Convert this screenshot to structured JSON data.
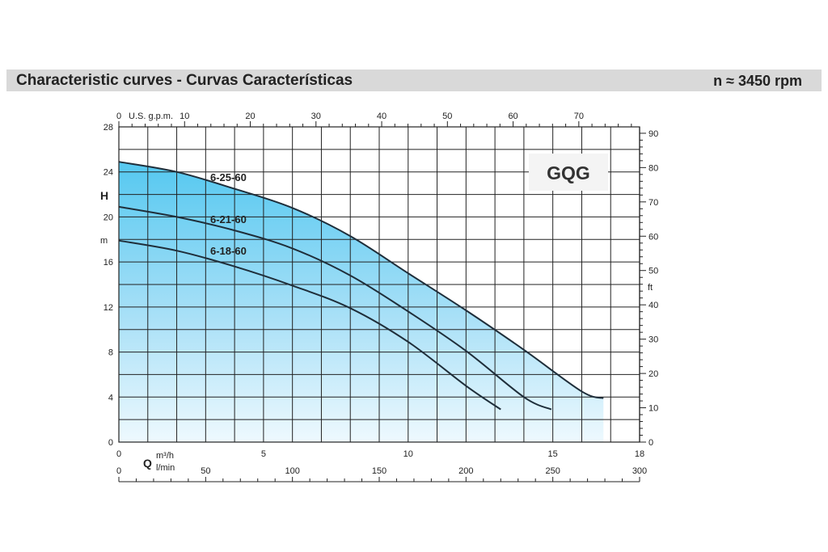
{
  "header": {
    "title": "Characteristic curves  -  Curvas Características",
    "speed": "n ≈ 3450 rpm"
  },
  "chart_data": {
    "type": "line",
    "model": "GQG",
    "x": {
      "label": "Q",
      "unit": "m³/h",
      "range": [
        0,
        18
      ],
      "ticks": [
        0,
        5,
        10,
        15,
        18
      ]
    },
    "x_lmin": {
      "unit": "l/min",
      "range": [
        0,
        300
      ],
      "ticks": [
        0,
        50,
        100,
        150,
        200,
        250,
        300
      ]
    },
    "x_gpm": {
      "unit": "U.S. g.p.m.",
      "range": [
        0,
        79.25
      ],
      "ticks": [
        0,
        10,
        20,
        30,
        40,
        50,
        60,
        70
      ]
    },
    "y": {
      "label": "H",
      "unit": "m",
      "range": [
        0,
        28
      ],
      "ticks": [
        0,
        4,
        8,
        12,
        16,
        20,
        24,
        28
      ]
    },
    "y_ft": {
      "unit": "ft",
      "range": [
        0,
        91.86
      ],
      "ticks": [
        0,
        10,
        20,
        30,
        40,
        50,
        60,
        70,
        80,
        90
      ]
    },
    "series": [
      {
        "name": "6-25-60",
        "x": [
          0,
          2,
          4,
          6,
          8,
          10,
          12,
          14,
          16,
          16.75
        ],
        "y": [
          24.9,
          24.0,
          22.5,
          20.8,
          18.3,
          15.0,
          11.7,
          8.2,
          4.5,
          3.9
        ]
      },
      {
        "name": "6-21-60",
        "x": [
          0,
          2,
          4,
          6,
          8,
          10,
          12,
          14,
          14.95
        ],
        "y": [
          20.9,
          20.0,
          18.8,
          17.2,
          14.8,
          11.6,
          8.1,
          4.0,
          2.9
        ]
      },
      {
        "name": "6-18-60",
        "x": [
          0,
          2,
          4,
          6,
          8,
          10,
          12,
          13.2
        ],
        "y": [
          17.9,
          17.0,
          15.6,
          13.9,
          11.9,
          8.9,
          5.0,
          2.9
        ]
      }
    ],
    "grid": true
  }
}
